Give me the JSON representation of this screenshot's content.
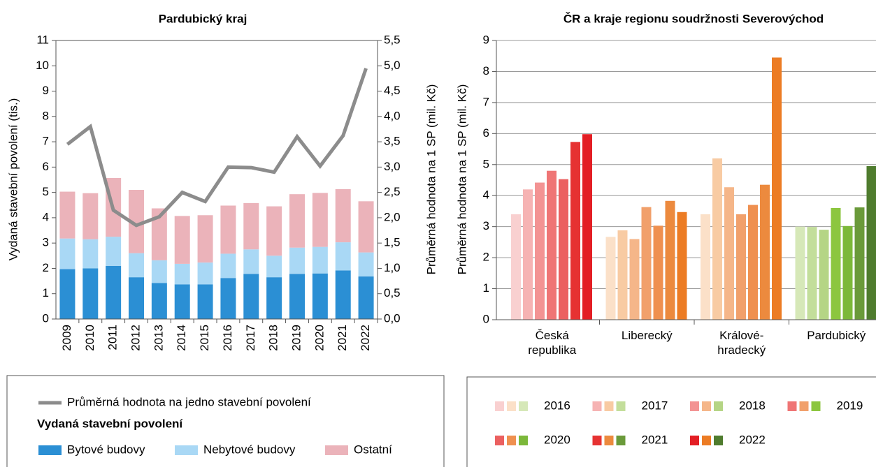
{
  "chart_data": [
    {
      "type": "bar",
      "stacked": true,
      "title": "Pardubický kraj",
      "y_label": "Vydaná stavební povolení (tis.)",
      "y2_label": "Průměrná hodnota na 1 SP (mil. Kč)",
      "categories": [
        "2009",
        "2010",
        "2011",
        "2012",
        "2013",
        "2014",
        "2015",
        "2016",
        "2017",
        "2018",
        "2019",
        "2020",
        "2021",
        "2022"
      ],
      "ylim": [
        0,
        11
      ],
      "yticks": [
        0,
        1,
        2,
        3,
        4,
        5,
        6,
        7,
        8,
        9,
        10,
        11
      ],
      "y2lim": [
        0,
        5.5
      ],
      "y2ticks": [
        {
          "value": 0,
          "label": "0,0"
        },
        {
          "value": 0.5,
          "label": "0,5"
        },
        {
          "value": 1,
          "label": "1,0"
        },
        {
          "value": 1.5,
          "label": "1,5"
        },
        {
          "value": 2,
          "label": "2,0"
        },
        {
          "value": 2.5,
          "label": "2,5"
        },
        {
          "value": 3,
          "label": "3,0"
        },
        {
          "value": 3.5,
          "label": "3,5"
        },
        {
          "value": 4,
          "label": "4,0"
        },
        {
          "value": 4.5,
          "label": "4,5"
        },
        {
          "value": 5,
          "label": "5,0"
        },
        {
          "value": 5.5,
          "label": "5,5"
        }
      ],
      "legend_title": "Vydaná stavební povolení",
      "series": [
        {
          "name": "Bytové budovy",
          "color": "#2b8fd4",
          "values": [
            1.97,
            2.0,
            2.1,
            1.65,
            1.42,
            1.37,
            1.37,
            1.62,
            1.78,
            1.65,
            1.78,
            1.8,
            1.92,
            1.68
          ]
        },
        {
          "name": "Nebytové budovy",
          "color": "#a9d8f5",
          "values": [
            1.21,
            1.15,
            1.15,
            0.95,
            0.9,
            0.81,
            0.86,
            0.96,
            0.97,
            0.85,
            1.04,
            1.05,
            1.11,
            0.95
          ]
        },
        {
          "name": "Ostatní",
          "color": "#ebb3ba",
          "values": [
            1.85,
            1.82,
            2.32,
            2.5,
            2.05,
            1.89,
            1.87,
            1.9,
            1.83,
            1.95,
            2.11,
            2.13,
            2.1,
            2.02
          ]
        },
        {
          "name": "Průměrná hodnota na jedno stavební povolení",
          "type": "line",
          "axis": "y2",
          "color": "#8c8c8c",
          "values": [
            3.45,
            3.8,
            2.15,
            1.85,
            2.02,
            2.5,
            2.32,
            3.0,
            2.99,
            2.9,
            3.6,
            3.02,
            3.62,
            4.95
          ]
        }
      ]
    },
    {
      "type": "bar",
      "title": "ČR a kraje regionu soudržnosti Severovýchod",
      "y_label": "Průměrná hodnota na 1 SP (mil. Kč)",
      "categories": [
        "Česká republika",
        "Liberecký",
        "Králové-hradecký",
        "Pardubický"
      ],
      "ylim": [
        0,
        9
      ],
      "yticks": [
        0,
        1,
        2,
        3,
        4,
        5,
        6,
        7,
        8,
        9
      ],
      "grid": true,
      "series": [
        {
          "name": "2016",
          "colors": [
            "#f9d0d0",
            "#fbe0c8",
            "#fbe0c8",
            "#d6e8b8"
          ],
          "values": [
            3.4,
            2.67,
            3.4,
            3.0
          ]
        },
        {
          "name": "2017",
          "colors": [
            "#f6b3b3",
            "#f8cba3",
            "#f8cba3",
            "#c3de9b"
          ],
          "values": [
            4.2,
            2.88,
            5.2,
            2.99
          ]
        },
        {
          "name": "2018",
          "colors": [
            "#f39393",
            "#f5b689",
            "#f5b689",
            "#b5d585"
          ],
          "values": [
            4.42,
            2.6,
            4.27,
            2.9
          ]
        },
        {
          "name": "2019",
          "colors": [
            "#ef7575",
            "#f1a06b",
            "#f1a06b",
            "#8cc63f"
          ],
          "values": [
            4.8,
            3.63,
            3.4,
            3.6
          ]
        },
        {
          "name": "2020",
          "colors": [
            "#eb6060",
            "#ef9050",
            "#ef9050",
            "#7cb83a"
          ],
          "values": [
            4.53,
            3.03,
            3.7,
            3.02
          ]
        },
        {
          "name": "2021",
          "colors": [
            "#e63232",
            "#ec8a3e",
            "#ec8a3e",
            "#6a9a3a"
          ],
          "values": [
            5.73,
            3.83,
            4.35,
            3.62
          ]
        },
        {
          "name": "2022",
          "colors": [
            "#e31e24",
            "#ec7c24",
            "#ec7c24",
            "#4f7c2e"
          ],
          "values": [
            5.98,
            3.47,
            8.45,
            4.95
          ]
        }
      ]
    }
  ]
}
